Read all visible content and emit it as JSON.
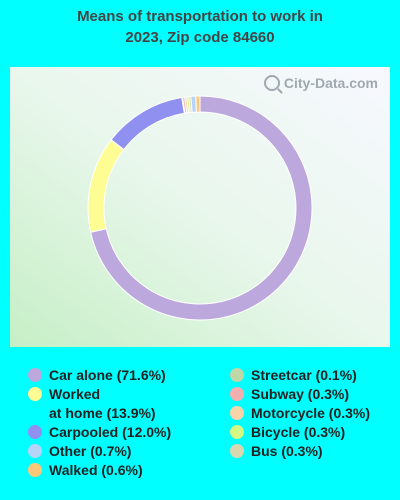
{
  "chart_data": {
    "type": "pie",
    "title_lines": [
      "Means of transportation to work in",
      "2023, Zip code 84660"
    ],
    "watermark": "City-Data.com",
    "slices": [
      {
        "label": "Car alone (71.6%)",
        "value": 71.6,
        "color": "#bca8dc"
      },
      {
        "label": "Worked\nat home (13.9%)",
        "value": 13.9,
        "color": "#fdfd94"
      },
      {
        "label": "Carpooled (12.0%)",
        "value": 12.0,
        "color": "#9090f0"
      },
      {
        "label": "Other (0.7%)",
        "value": 0.7,
        "color": "#b4d4fa"
      },
      {
        "label": "Walked (0.6%)",
        "value": 0.6,
        "color": "#fcc878"
      },
      {
        "label": "Streetcar (0.1%)",
        "value": 0.1,
        "color": "#c0d8a8"
      },
      {
        "label": "Subway (0.3%)",
        "value": 0.3,
        "color": "#f4b0b0"
      },
      {
        "label": "Motorcycle (0.3%)",
        "value": 0.3,
        "color": "#f8d4a8"
      },
      {
        "label": "Bicycle (0.3%)",
        "value": 0.3,
        "color": "#d4f884"
      },
      {
        "label": "Bus (0.3%)",
        "value": 0.3,
        "color": "#d8d8b0"
      }
    ],
    "donut_order": [
      "Car alone (71.6%)",
      "Worked\nat home (13.9%)",
      "Carpooled (12.0%)",
      "Streetcar (0.1%)",
      "Subway (0.3%)",
      "Motorcycle (0.3%)",
      "Bicycle (0.3%)",
      "Bus (0.3%)",
      "Other (0.7%)",
      "Walked (0.6%)"
    ]
  }
}
